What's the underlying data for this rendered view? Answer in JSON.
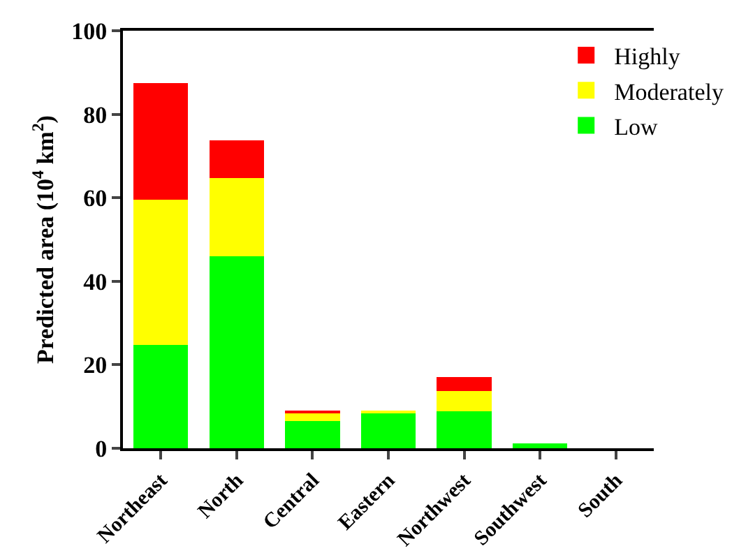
{
  "chart_data": {
    "type": "bar",
    "stacked": true,
    "ylabel": "Predicted area (10$^{4}$ km$^{2}$)",
    "categories": [
      "Northeast",
      "North",
      "Central",
      "Eastern",
      "Northwest",
      "Southwest",
      "South"
    ],
    "series": [
      {
        "name": "Low",
        "color": "#00ff00",
        "values": [
          24.7,
          46.0,
          6.5,
          8.6,
          8.9,
          1.1,
          0
        ]
      },
      {
        "name": "Moderately",
        "color": "#ffff00",
        "values": [
          34.9,
          18.8,
          2.0,
          0.2,
          4.8,
          0,
          0
        ]
      },
      {
        "name": "Highly",
        "color": "#ff0000",
        "values": [
          27.8,
          8.9,
          0.4,
          0,
          3.4,
          0,
          0
        ]
      }
    ],
    "ylim": [
      0,
      100
    ],
    "yticks": [
      0,
      20,
      40,
      60,
      80,
      100
    ],
    "grid": false,
    "legend": "top right"
  }
}
